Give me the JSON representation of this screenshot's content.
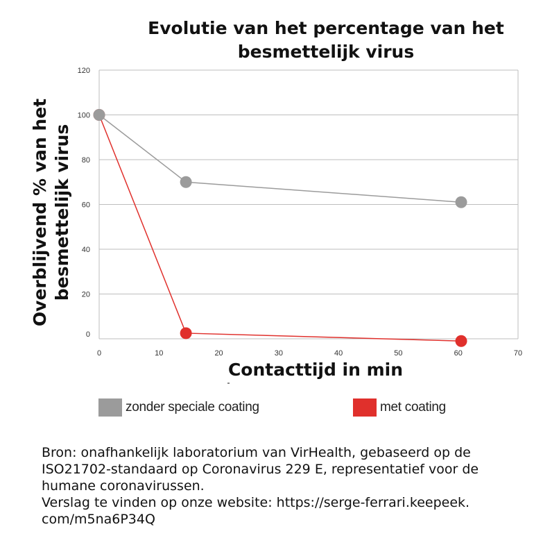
{
  "chart_data": {
    "type": "line",
    "title": "Evolutie van het percentage van het besmettelijk virus",
    "xlabel": "Contacttijd in min",
    "ylabel": "Overblijvend % van het besmettelijk virus",
    "xlim": [
      0,
      70
    ],
    "ylim": [
      0,
      120
    ],
    "x_ticks": [
      "0",
      "10",
      "20",
      "30",
      "40",
      "50",
      "60",
      "70"
    ],
    "y_ticks": [
      "0",
      "20",
      "40",
      "60",
      "80",
      "100",
      "120"
    ],
    "grid": "horizontal",
    "legend_position": "bottom",
    "series": [
      {
        "name": "zonder speciale coating",
        "color": "#9b9b9b",
        "points": [
          [
            0,
            100
          ],
          [
            14.5,
            70
          ],
          [
            60.5,
            61
          ]
        ]
      },
      {
        "name": "met coating",
        "color": "#e0302c",
        "points": [
          [
            0,
            100
          ],
          [
            14.5,
            2.5
          ],
          [
            60.5,
            -1
          ]
        ]
      }
    ]
  },
  "source": {
    "lines": [
      "Bron: onafhankelijk laboratorium van VirHealth, gebaseerd op de",
      "ISO21702-standaard op Coronavirus 229 E, representatief voor de",
      "humane coronavirussen.",
      "Verslag te vinden op onze website: https://serge-ferrari.keepeek.",
      "com/m5na6P34Q"
    ]
  }
}
